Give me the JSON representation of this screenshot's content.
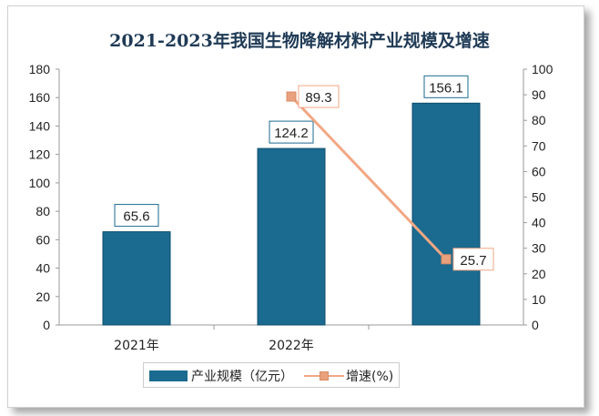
{
  "chart_data": {
    "type": "bar+line",
    "title": "2021-2023年我国生物降解材料产业规模及增速",
    "categories": [
      "2021年",
      "2022年",
      ""
    ],
    "series": [
      {
        "name": "产业规模（亿元）",
        "type": "bar",
        "axis": "left",
        "values": [
          65.6,
          124.2,
          156.1
        ],
        "color": "#1b6a90"
      },
      {
        "name": "增速(%)",
        "type": "line",
        "axis": "right",
        "values": [
          null,
          89.3,
          25.7
        ],
        "color": "#f2a784"
      }
    ],
    "y_left": {
      "min": 0,
      "max": 180,
      "step": 20
    },
    "y_right": {
      "min": 0,
      "max": 100,
      "step": 10
    },
    "grid": false,
    "legend_position": "bottom"
  }
}
